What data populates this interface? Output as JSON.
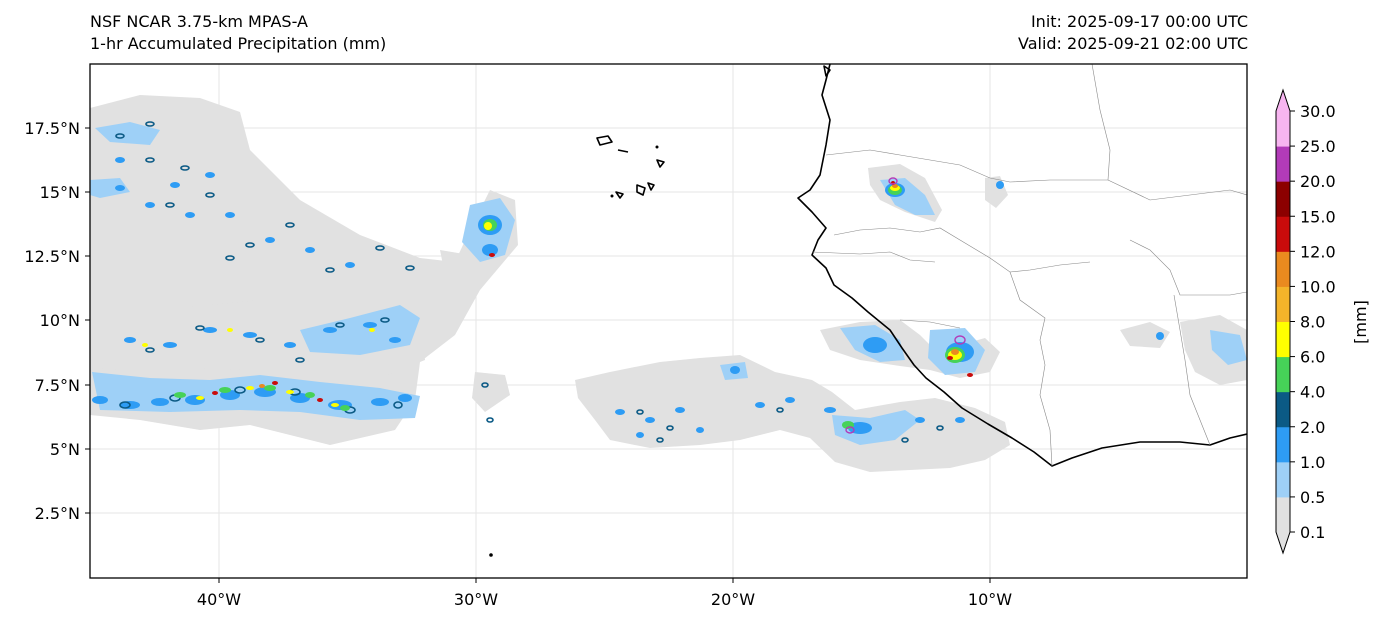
{
  "header": {
    "model": "NSF NCAR 3.75-km MPAS-A",
    "field": "1-hr Accumulated Precipitation (mm)",
    "init": "Init: 2025-09-17 00:00 UTC",
    "valid": "Valid: 2025-09-21 02:00 UTC"
  },
  "map": {
    "lon_range": [
      -45,
      0
    ],
    "lat_range": [
      0,
      20
    ],
    "lon_ticks": [
      "40°W",
      "30°W",
      "20°W",
      "10°W"
    ],
    "lat_ticks": [
      "2.5°N",
      "5°N",
      "7.5°N",
      "10°N",
      "12.5°N",
      "15°N",
      "17.5°N"
    ],
    "grid": true
  },
  "colorbar": {
    "unit_label": "[mm]",
    "levels": [
      "0.1",
      "0.5",
      "1.0",
      "2.0",
      "4.0",
      "6.0",
      "8.0",
      "10.0",
      "12.0",
      "15.0",
      "20.0",
      "25.0",
      "30.0"
    ],
    "colors": [
      "#e1e1e1",
      "#9ed0f7",
      "#2e9cf4",
      "#0b5a85",
      "#46d258",
      "#ffff00",
      "#f4b42a",
      "#ea8a1f",
      "#c90b0b",
      "#8c0000",
      "#b23bb8",
      "#f7b5f0"
    ]
  }
}
